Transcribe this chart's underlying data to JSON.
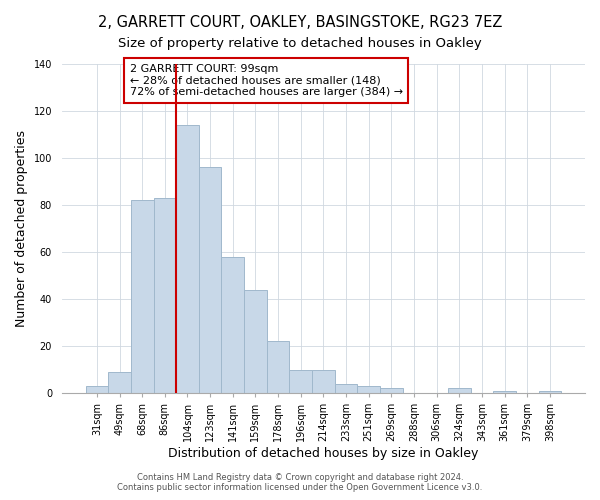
{
  "title1": "2, GARRETT COURT, OAKLEY, BASINGSTOKE, RG23 7EZ",
  "title2": "Size of property relative to detached houses in Oakley",
  "xlabel": "Distribution of detached houses by size in Oakley",
  "ylabel": "Number of detached properties",
  "categories": [
    "31sqm",
    "49sqm",
    "68sqm",
    "86sqm",
    "104sqm",
    "123sqm",
    "141sqm",
    "159sqm",
    "178sqm",
    "196sqm",
    "214sqm",
    "233sqm",
    "251sqm",
    "269sqm",
    "288sqm",
    "306sqm",
    "324sqm",
    "343sqm",
    "361sqm",
    "379sqm",
    "398sqm"
  ],
  "values": [
    3,
    9,
    82,
    83,
    114,
    96,
    58,
    44,
    22,
    10,
    10,
    4,
    3,
    2,
    0,
    0,
    2,
    0,
    1,
    0,
    1
  ],
  "bar_color": "#c8d8e8",
  "bar_edge_color": "#a0b8cc",
  "vline_color": "#cc0000",
  "annotation_line1": "2 GARRETT COURT: 99sqm",
  "annotation_line2": "← 28% of detached houses are smaller (148)",
  "annotation_line3": "72% of semi-detached houses are larger (384) →",
  "annotation_box_edge": "#cc0000",
  "ylim": [
    0,
    140
  ],
  "yticks": [
    0,
    20,
    40,
    60,
    80,
    100,
    120,
    140
  ],
  "footer1": "Contains HM Land Registry data © Crown copyright and database right 2024.",
  "footer2": "Contains public sector information licensed under the Open Government Licence v3.0.",
  "background_color": "#ffffff",
  "title_fontsize": 10.5,
  "subtitle_fontsize": 9.5,
  "axis_label_fontsize": 9,
  "tick_fontsize": 7,
  "annotation_fontsize": 8,
  "vline_bar_index": 4
}
